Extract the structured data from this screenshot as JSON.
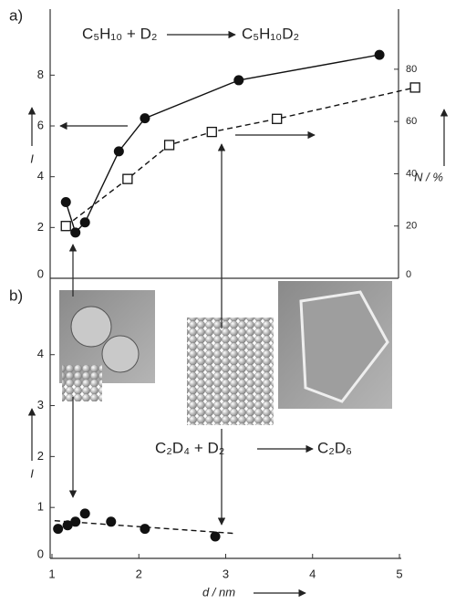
{
  "chart_data": [
    {
      "type": "line",
      "label": "a)",
      "reactant": "C₅H₁₀ + D₂",
      "product": "C₅H₁₀D₂",
      "ylabel": "I",
      "y2label": "N / %",
      "xlim": [
        1,
        5
      ],
      "ylim": [
        0,
        10.6
      ],
      "yticks": [
        0,
        2,
        4,
        6,
        8
      ],
      "y2lim": [
        0,
        103
      ],
      "y2ticks": [
        0,
        20,
        40,
        60,
        80
      ],
      "series": [
        {
          "x": [
            1.16,
            1.27,
            1.38,
            1.77,
            2.07,
            3.15,
            4.77
          ],
          "values": [
            3.0,
            1.8,
            2.2,
            5.0,
            6.3,
            7.8,
            8.8
          ],
          "marker": "filled-circle",
          "line": "solid",
          "color": "#111"
        },
        {
          "x": [
            1.16,
            1.87,
            2.35,
            2.84,
            3.59,
            5.18
          ],
          "values": [
            20,
            38,
            51,
            56,
            61,
            73
          ],
          "marker": "open-square",
          "line": "dashed",
          "color": "#111",
          "axis": "y2"
        }
      ]
    },
    {
      "type": "line",
      "label": "b)",
      "reactant": "C₂D₄ + D₂",
      "product": "C₂D₆",
      "ylabel": "I",
      "xlabel": "d / nm",
      "xlim": [
        1,
        5
      ],
      "xticks": [
        1,
        2,
        3,
        4,
        5
      ],
      "ylim": [
        0,
        5.5
      ],
      "yticks": [
        0,
        1,
        2,
        3,
        4
      ],
      "series": [
        {
          "x": [
            1.07,
            1.18,
            1.27,
            1.38,
            1.68,
            2.07,
            2.88
          ],
          "values": [
            0.58,
            0.65,
            0.72,
            0.88,
            0.72,
            0.58,
            0.43
          ],
          "marker": "filled-circle",
          "line": "none",
          "color": "#111"
        },
        {
          "x": [
            1.03,
            3.1
          ],
          "values": [
            0.74,
            0.49
          ],
          "marker": "none",
          "line": "dashed",
          "color": "#111"
        }
      ]
    }
  ]
}
